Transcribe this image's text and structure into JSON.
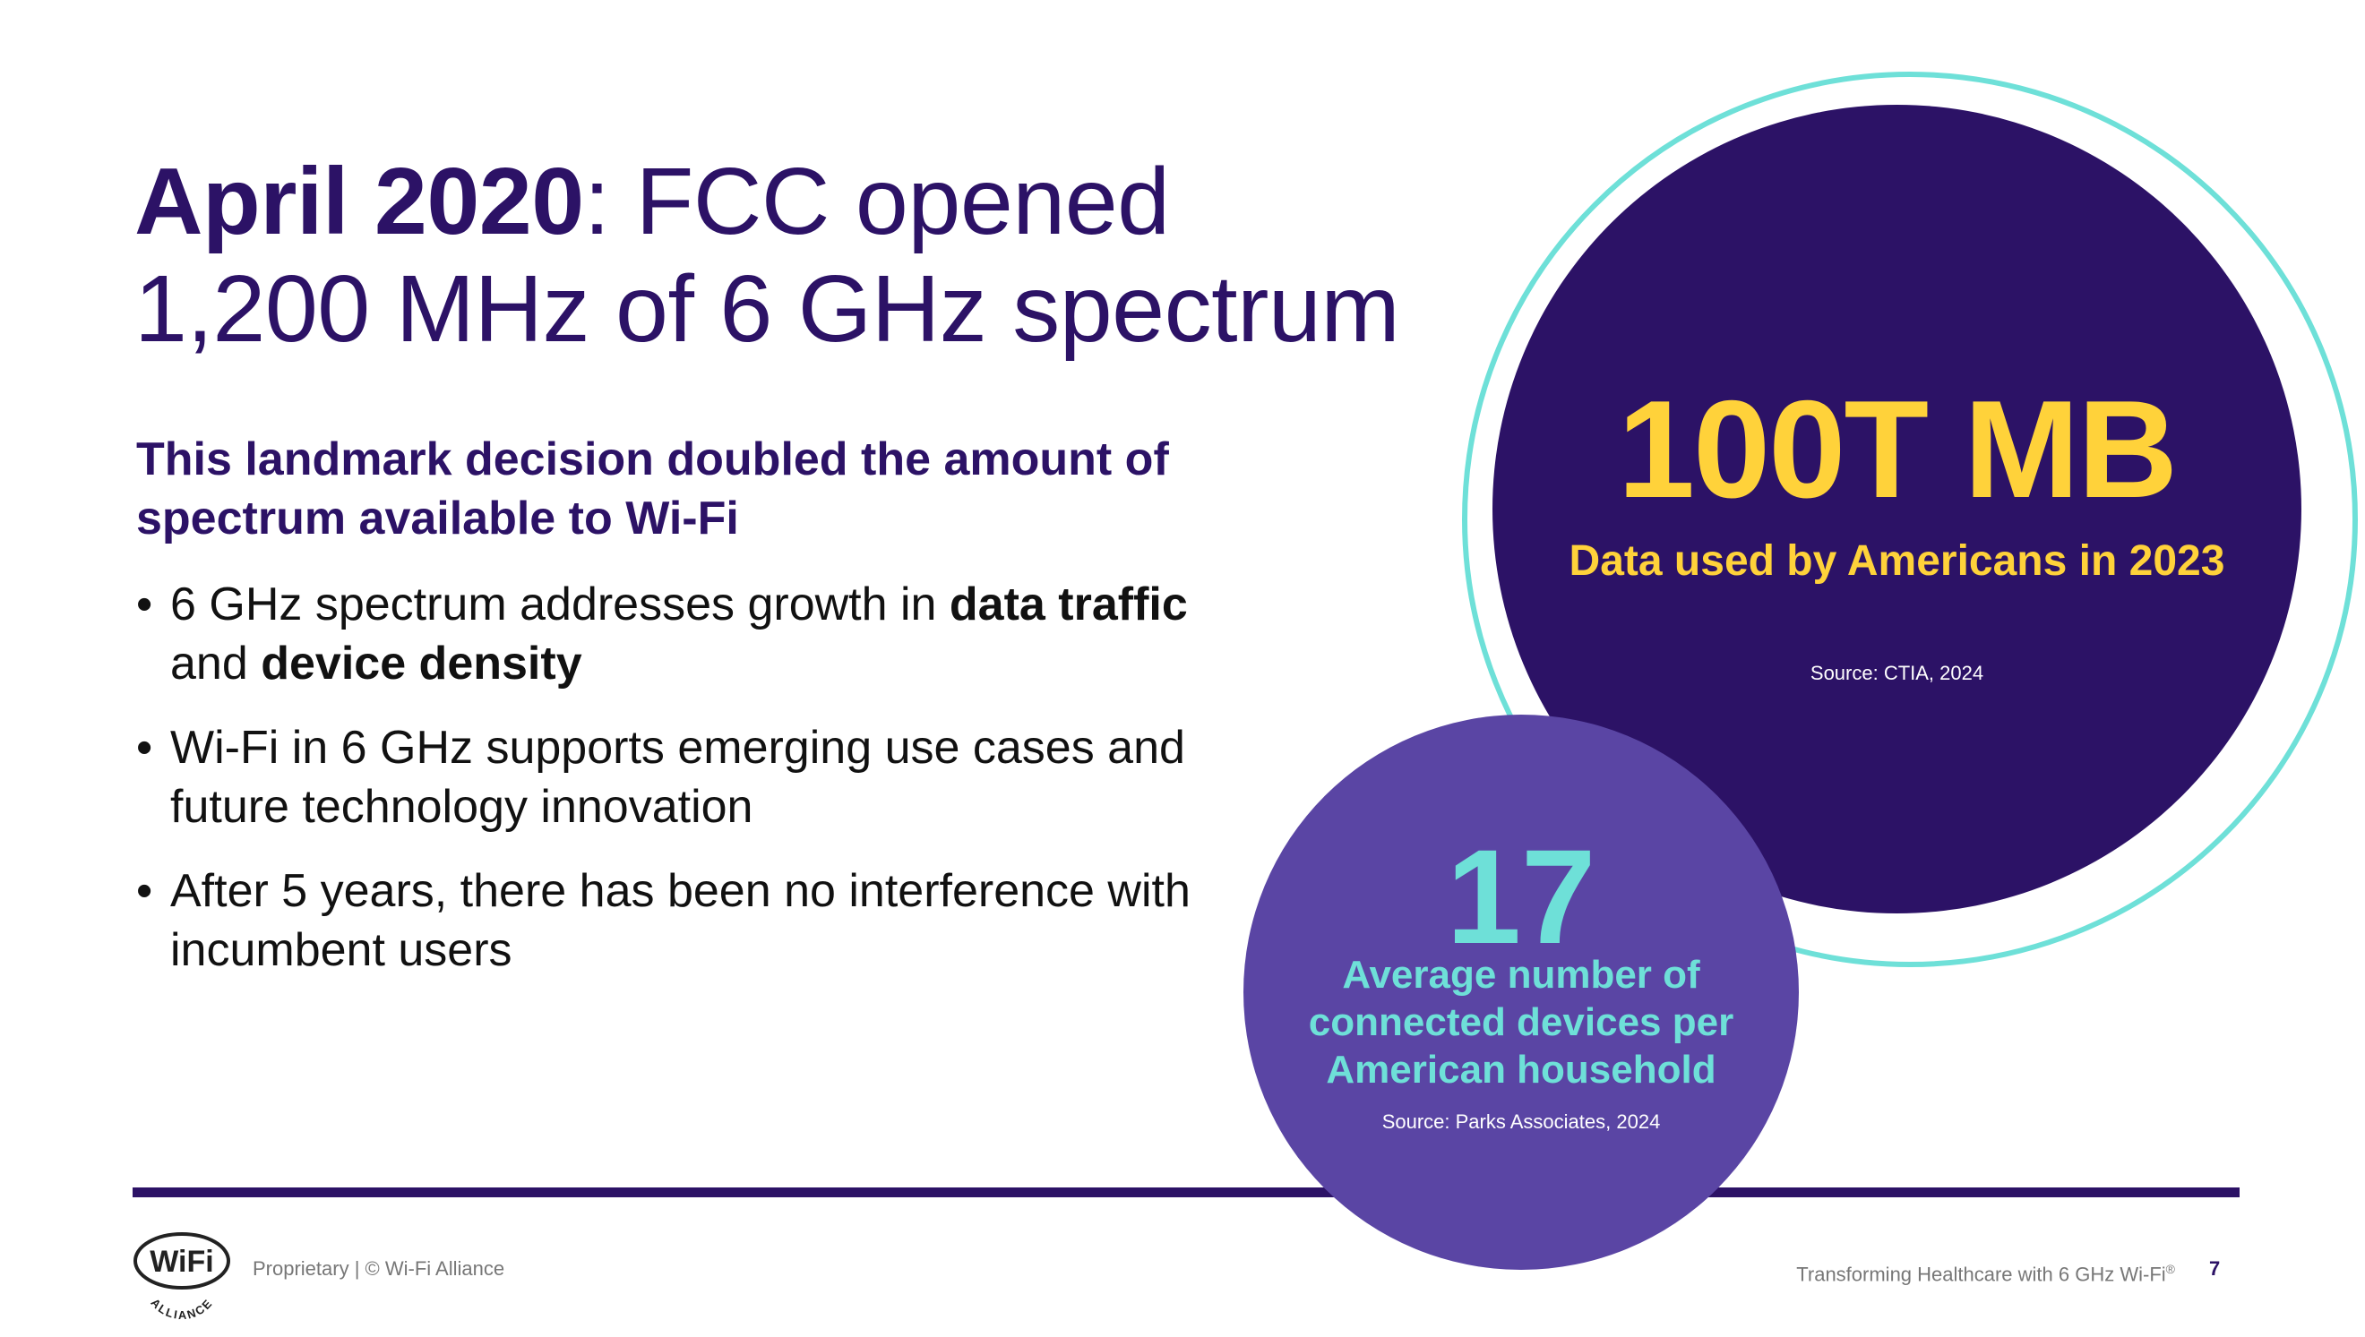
{
  "title": {
    "bold": "April 2020",
    "rest_line1": ": FCC opened",
    "line2": "1,200 MHz of 6 GHz spectrum"
  },
  "subhead": "This landmark decision doubled the amount of spectrum available to Wi-Fi",
  "bullets": [
    {
      "marker": "•",
      "t1": "6 GHz spectrum addresses growth in ",
      "b1": "data traffic",
      "t2": " and ",
      "b2": "device density"
    },
    {
      "marker": "•",
      "text": "Wi-Fi in 6 GHz supports emerging use cases and future technology innovation"
    },
    {
      "marker": "•",
      "text": "After 5 years, there has been no interference with incumbent users"
    }
  ],
  "stat_large": {
    "value": "100T MB",
    "caption": "Data used by Americans in 2023",
    "source": "Source: CTIA, 2024"
  },
  "stat_small": {
    "value": "17",
    "caption": "Average number of connected devices per American household",
    "source": "Source: Parks Associates, 2024"
  },
  "footer": {
    "logo_text": "WiFi",
    "logo_sub": "ALLIANCE",
    "left": "Proprietary | © Wi-Fi Alliance",
    "right": "Transforming Healthcare with 6 GHz Wi-Fi",
    "right_sup": "®",
    "page": "7"
  },
  "colors": {
    "dark_purple": "#2c1266",
    "mid_purple": "#5a45a4",
    "teal": "#6ee0d8",
    "yellow": "#ffd23a"
  }
}
